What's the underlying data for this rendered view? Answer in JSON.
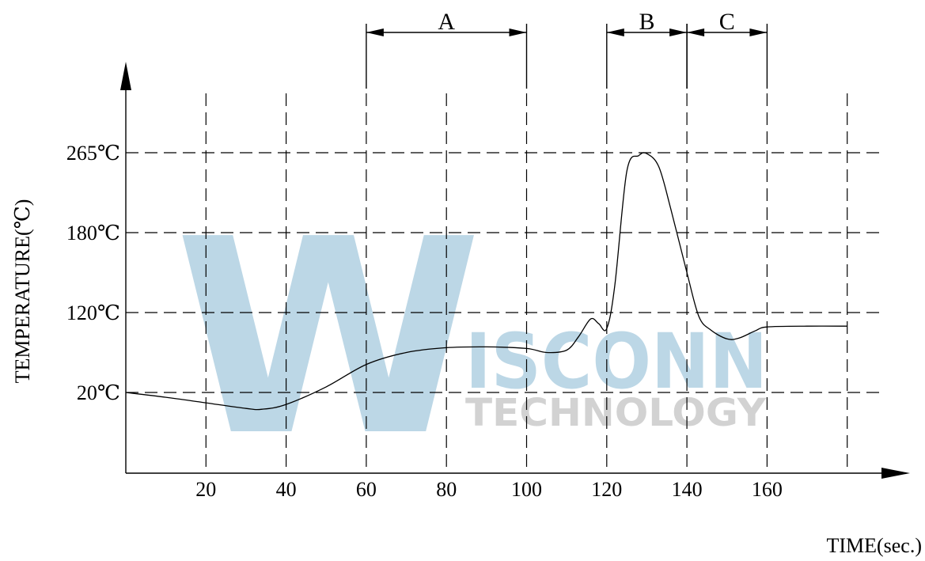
{
  "chart_data": {
    "type": "line",
    "ylabel": "TEMPERATURE(℃)",
    "xlabel": "TIME(sec.)",
    "x_ticks": [
      {
        "value": 20,
        "label": "20"
      },
      {
        "value": 40,
        "label": "40"
      },
      {
        "value": 60,
        "label": "60"
      },
      {
        "value": 80,
        "label": "80"
      },
      {
        "value": 100,
        "label": "100"
      },
      {
        "value": 120,
        "label": "120"
      },
      {
        "value": 140,
        "label": "140"
      },
      {
        "value": 160,
        "label": "160"
      }
    ],
    "y_ticks": [
      {
        "value": 20,
        "label": "20℃"
      },
      {
        "value": 120,
        "label": "120℃"
      },
      {
        "value": 180,
        "label": "180℃"
      },
      {
        "value": 265,
        "label": "265℃"
      }
    ],
    "zones": [
      {
        "label": "A",
        "start": 60,
        "end": 100
      },
      {
        "label": "B",
        "start": 120,
        "end": 140
      },
      {
        "label": "C",
        "start": 140,
        "end": 160
      }
    ],
    "grid": true,
    "series": [
      {
        "x": [
          0,
          10,
          20,
          30,
          34,
          40,
          50,
          60,
          70,
          80,
          90,
          100,
          105,
          110,
          113,
          116,
          118,
          120,
          122,
          125,
          128,
          130,
          133,
          136,
          140,
          143,
          146,
          150,
          153,
          157,
          160,
          170,
          180
        ],
        "y": [
          20,
          14,
          7,
          0,
          -1,
          5,
          27,
          55,
          70,
          76,
          77,
          75,
          70,
          73,
          90,
          112,
          106,
          100,
          140,
          245,
          262,
          264,
          250,
          205,
          150,
          115,
          98,
          87,
          88,
          97,
          102,
          103,
          103
        ]
      }
    ]
  },
  "watermark": {
    "big_letter": "W",
    "word": "ISCONN",
    "subword": "TECHNOLOGY"
  }
}
